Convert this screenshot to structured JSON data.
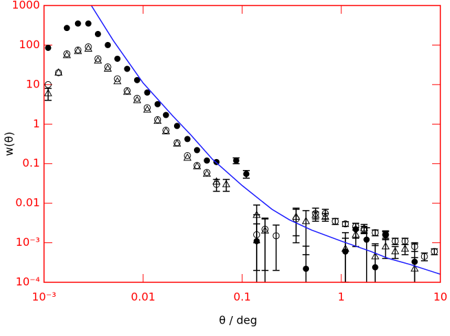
{
  "chart_data": {
    "type": "scatter",
    "xlabel": "θ / deg",
    "ylabel": "w(θ)",
    "xscale": "log",
    "yscale": "log",
    "xlim": [
      0.001,
      10
    ],
    "ylim": [
      0.0001,
      1000
    ],
    "xticks": [
      {
        "value": 0.001,
        "label": "10⁻³"
      },
      0.01,
      0.1,
      1,
      10
    ],
    "yticks": [
      {
        "value": 0.0001,
        "label": "10⁻⁴"
      },
      {
        "value": 0.001,
        "label": "10⁻³"
      },
      0.01,
      0.1,
      1,
      10,
      100,
      1000
    ],
    "axis_color": "#ff0000",
    "series": [
      {
        "style": "filled-circle",
        "color": "#000000",
        "x": [
          0.0011,
          0.0017,
          0.0022,
          0.0028,
          0.0035,
          0.0044,
          0.0055,
          0.0069,
          0.0087,
          0.011,
          0.014,
          0.017,
          0.022,
          0.028,
          0.035,
          0.044,
          0.055,
          0.087,
          0.11,
          0.14,
          0.44,
          1.1,
          1.4,
          1.8,
          2.2,
          2.8,
          5.5
        ],
        "values": [
          85,
          270,
          350,
          350,
          190,
          100,
          45,
          25,
          13,
          6.3,
          3.2,
          1.7,
          0.9,
          0.42,
          0.22,
          0.12,
          0.11,
          0.12,
          0.055,
          0.0011,
          0.00022,
          0.0006,
          0.0022,
          0.0012,
          0.00024,
          0.0016,
          0.00033
        ],
        "errors": [
          null,
          null,
          null,
          null,
          null,
          null,
          null,
          null,
          null,
          null,
          null,
          null,
          null,
          null,
          null,
          null,
          null,
          0.02,
          0.012,
          0.004,
          0.0006,
          0.0012,
          0.0009,
          0.0012,
          0.0007,
          0.0004,
          0.0006
        ]
      },
      {
        "style": "open-circle",
        "color": "#000000",
        "x": [
          0.0011,
          0.0014,
          0.0017,
          0.0022,
          0.0028,
          0.0035,
          0.0044,
          0.0055,
          0.0069,
          0.0087,
          0.011,
          0.014,
          0.017,
          0.022,
          0.028,
          0.035,
          0.044,
          0.055,
          0.14,
          0.17,
          0.22,
          0.35,
          0.55,
          0.69,
          0.87,
          1.1,
          1.4,
          1.7,
          2.2,
          2.8,
          3.5,
          4.4,
          5.5,
          6.9,
          8.7
        ],
        "values": [
          10,
          20,
          60,
          75,
          90,
          45,
          28,
          14,
          7,
          4.5,
          2.6,
          1.3,
          0.7,
          0.34,
          0.16,
          0.09,
          0.06,
          0.03,
          0.0016,
          0.0022,
          0.0015,
          0.004,
          0.0055,
          0.0055,
          0.0035,
          0.003,
          0.0026,
          0.0022,
          0.0018,
          0.0016,
          0.0011,
          0.0011,
          0.0008,
          0.00045,
          0.0006
        ],
        "errors": [
          null,
          null,
          null,
          null,
          null,
          null,
          null,
          null,
          null,
          null,
          null,
          null,
          null,
          null,
          null,
          null,
          null,
          0.01,
          0.0014,
          0.002,
          0.0013,
          0.003,
          0.002,
          0.0015,
          0.0006,
          0.0004,
          0.0005,
          0.0004,
          0.0003,
          0.0003,
          0.0002,
          0.0002,
          0.0002,
          0.0001,
          0.0001
        ]
      },
      {
        "style": "open-triangle",
        "color": "#000000",
        "x": [
          0.0011,
          0.0014,
          0.0017,
          0.0022,
          0.0028,
          0.0035,
          0.0044,
          0.0055,
          0.0069,
          0.0087,
          0.011,
          0.014,
          0.017,
          0.022,
          0.028,
          0.035,
          0.044,
          0.055,
          0.069,
          0.14,
          0.17,
          0.35,
          0.44,
          0.55,
          0.69,
          1.1,
          1.4,
          1.7,
          2.2,
          2.8,
          3.5,
          4.4,
          5.5
        ],
        "values": [
          6,
          20,
          55,
          70,
          80,
          40,
          25,
          12,
          6.5,
          4,
          2.3,
          1.2,
          0.65,
          0.32,
          0.14,
          0.085,
          0.055,
          0.035,
          0.03,
          0.005,
          0.002,
          0.0045,
          0.0035,
          0.005,
          0.0045,
          0.0007,
          0.0016,
          0.0023,
          0.00045,
          0.0008,
          0.0006,
          0.0007,
          0.00022
        ],
        "errors": [
          2,
          null,
          null,
          null,
          null,
          null,
          null,
          null,
          null,
          null,
          null,
          null,
          null,
          null,
          null,
          null,
          null,
          null,
          0.01,
          0.004,
          0.002,
          0.003,
          0.003,
          0.001,
          0.001,
          0.0006,
          0.0008,
          0.0006,
          0.0004,
          0.0004,
          0.0002,
          0.0002,
          0.0002
        ]
      },
      {
        "style": "line",
        "color": "#1a1aff",
        "x": [
          0.003,
          0.005,
          0.01,
          0.02,
          0.03,
          0.05,
          0.1,
          0.2,
          0.3,
          0.5,
          1,
          2,
          3,
          5,
          10
        ],
        "values": [
          1000,
          130,
          11,
          1.6,
          0.55,
          0.13,
          0.028,
          0.007,
          0.0038,
          0.0021,
          0.0011,
          0.0006,
          0.0004,
          0.00028,
          0.00016
        ]
      }
    ]
  }
}
